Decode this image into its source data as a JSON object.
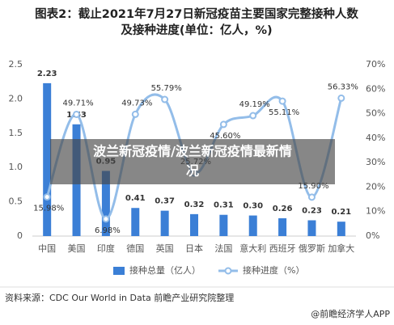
{
  "chart_data": {
    "type": "bar-line",
    "title": "图表2：截止2021年7月27日新冠疫苗主要国家完整接种人数",
    "subtitle": "及接种进度(单位：亿人，%)",
    "categories": [
      "中国",
      "美国",
      "印度",
      "德国",
      "英国",
      "日本",
      "法国",
      "意大利",
      "西班牙",
      "俄罗斯",
      "加拿大"
    ],
    "series": [
      {
        "name": "接种总量（亿人）",
        "type": "bar",
        "color": "#3b7fd6",
        "values": [
          2.23,
          1.63,
          0.95,
          0.41,
          0.37,
          0.32,
          0.31,
          0.3,
          0.26,
          0.23,
          0.21
        ],
        "value_labels": [
          "2.23",
          "1.63",
          "0.95",
          "0.41",
          "0.37",
          "0.32",
          "0.31",
          "0.30",
          "0.26",
          "0.23",
          "0.21"
        ]
      },
      {
        "name": "接种进度（%）",
        "type": "line",
        "axis": "y2",
        "color": "#93bde9",
        "values": [
          15.98,
          49.71,
          6.98,
          49.73,
          55.79,
          25.72,
          45.6,
          49.19,
          55.11,
          15.9,
          56.33
        ],
        "value_labels": [
          "15.98%",
          "49.71%",
          "6.98%",
          "49.73%",
          "55.79%",
          "25.72%",
          "45.60%",
          "49.19%",
          "55.11%",
          "15.90%",
          "56.33%"
        ]
      }
    ],
    "ylim": [
      0,
      2.5
    ],
    "yticks": [
      0,
      0.5,
      {
        "value": 1,
        "label": "1.0"
      },
      1.5,
      {
        "value": 2,
        "label": "2.0"
      },
      2.5
    ],
    "y2lim": [
      0,
      70
    ],
    "y2ticks": [
      {
        "value": 0,
        "label": "0%"
      },
      {
        "value": 10,
        "label": "10%"
      },
      {
        "value": 20,
        "label": "20%"
      },
      {
        "value": 30,
        "label": "30%"
      },
      {
        "value": 40,
        "label": "40%"
      },
      {
        "value": 50,
        "label": "50%"
      },
      {
        "value": 60,
        "label": "60%"
      },
      {
        "value": 70,
        "label": "70%"
      }
    ],
    "grid": false
  },
  "banner": [
    "波兰新冠疫情/波兰新冠疫情最新情",
    "况"
  ],
  "source": "资料来源：CDC Our World in Data 前瞻产业研究院整理",
  "footer": "@前瞻经济学人APP"
}
